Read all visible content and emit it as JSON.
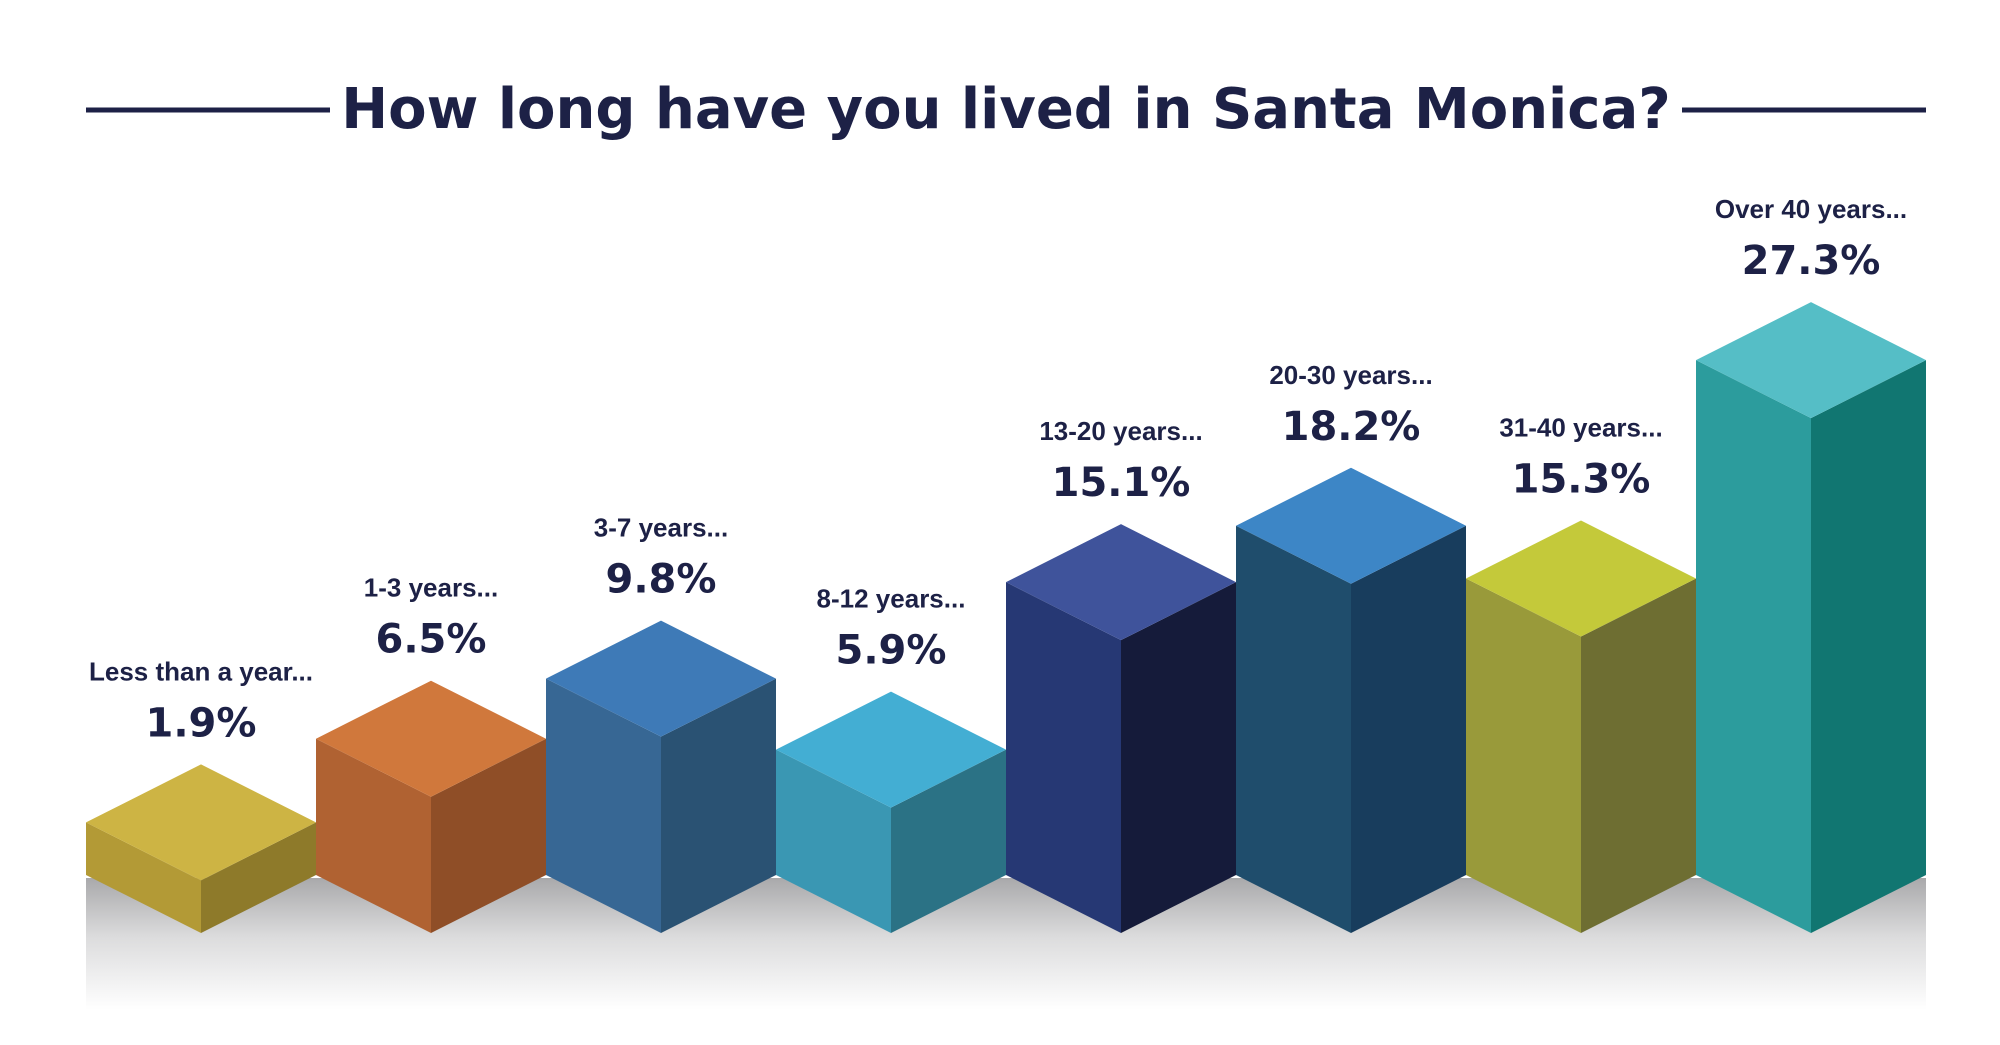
{
  "chart_data": {
    "type": "bar",
    "title": "How long have you lived in Santa Monica?",
    "xlabel": "",
    "ylabel": "",
    "ylim": [
      0,
      30
    ],
    "categories": [
      "Less than a year...",
      "1-3 years...",
      "3-7 years...",
      "8-12 years...",
      "13-20 years...",
      "20-30 years...",
      "31-40 years...",
      "Over 40 years..."
    ],
    "values": [
      1.9,
      6.5,
      9.8,
      5.9,
      15.1,
      18.2,
      15.3,
      27.3
    ],
    "value_labels": [
      "1.9%",
      "6.5%",
      "9.8%",
      "5.9%",
      "15.1%",
      "18.2%",
      "15.3%",
      "27.3%"
    ],
    "colors": [
      {
        "top": "#cdb444",
        "left": "#b39a36",
        "right": "#8e7a2a"
      },
      {
        "top": "#d0783c",
        "left": "#b06232",
        "right": "#8f4e27"
      },
      {
        "top": "#3e7ab7",
        "left": "#376794",
        "right": "#2a5273"
      },
      {
        "top": "#43aed3",
        "left": "#3a97b3",
        "right": "#2b7285"
      },
      {
        "top": "#3f539b",
        "left": "#263874",
        "right": "#151b3a"
      },
      {
        "top": "#3d86c6",
        "left": "#1f4d6c",
        "right": "#183d5d"
      },
      {
        "top": "#c4c93a",
        "left": "#999a3a",
        "right": "#6e6e32"
      },
      {
        "top": "#55bec6",
        "left": "#2c9c9d",
        "right": "#117671"
      }
    ],
    "text_color": "#1d2146"
  }
}
